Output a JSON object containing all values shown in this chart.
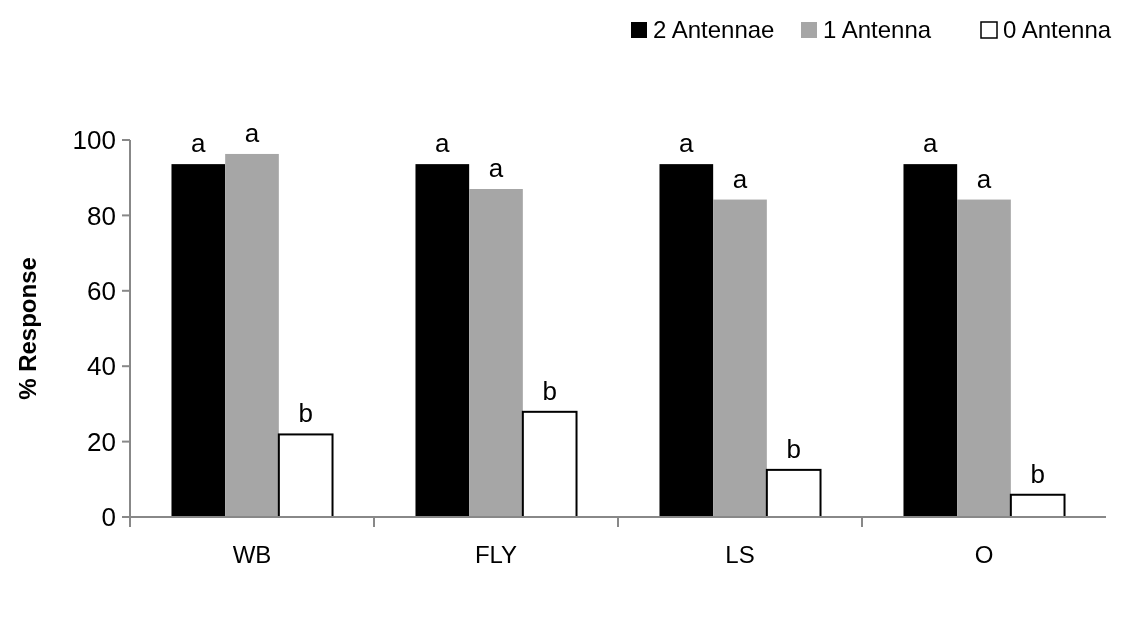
{
  "chart_data": {
    "type": "bar",
    "ylabel": "% Response",
    "categories": [
      "WB",
      "FLY",
      "LS",
      "O"
    ],
    "series": [
      {
        "name": "2 Antennae",
        "color": "#000000",
        "values": [
          93.6,
          93.6,
          93.6,
          93.6
        ]
      },
      {
        "name": "1 Antenna",
        "color": "#a6a6a6",
        "values": [
          96.3,
          87.0,
          84.2,
          84.2
        ]
      },
      {
        "name": "0 Antenna",
        "color": "#ffffff",
        "values": [
          21.9,
          27.9,
          12.5,
          5.9
        ]
      }
    ],
    "ylim": [
      0,
      100
    ],
    "yticks": [
      0,
      20,
      40,
      60,
      80,
      100
    ],
    "grid": false,
    "legend": "top right",
    "annotations": [
      "a",
      "a",
      "b",
      "a",
      "a",
      "b",
      "a",
      "a",
      "b",
      "a",
      "a",
      "b"
    ]
  }
}
